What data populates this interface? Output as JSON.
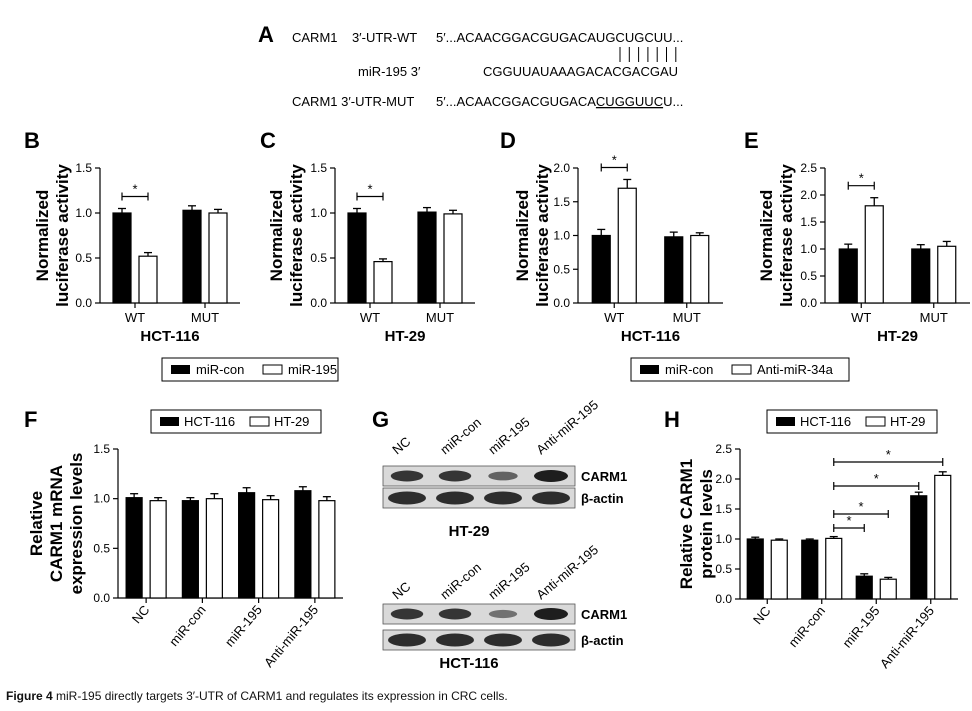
{
  "sequence_panel": {
    "letter": "A",
    "wt_label": "CARM1    3′-UTR-WT",
    "wt_seq_pre": "5′...ACAACGGACGUGACAU",
    "wt_seq_mid": "GCUGCU",
    "wt_seq_post": "U...",
    "mir_label": "miR-195 3′",
    "mir_seq": "CGGUUAUAAAGACACGACGAU",
    "mut_label": "CARM1 3′-UTR-MUT",
    "mut_seq_pre": "5′...ACAACGGACGUGACA",
    "mut_seq_mid": "CUGGUUC",
    "mut_seq_post": "U...",
    "pairing_marks": 7
  },
  "legends": {
    "bc": {
      "items": [
        "miR-con",
        "miR-195"
      ]
    },
    "de": {
      "items": [
        "miR-con",
        "Anti-miR-34a"
      ]
    },
    "f": {
      "items": [
        "HCT-116",
        "HT-29"
      ]
    },
    "h": {
      "items": [
        "HCT-116",
        "HT-29"
      ]
    }
  },
  "blot_panel": {
    "letter": "G",
    "lanes": [
      "NC",
      "miR-con",
      "miR-195",
      "Anti-miR-195"
    ],
    "blots": [
      {
        "title": "HT-29",
        "bands": [
          "CARM1",
          "β-actin"
        ],
        "carm1_intensity": [
          0.85,
          0.85,
          0.55,
          1.0
        ],
        "actin_intensity": [
          0.9,
          0.9,
          0.9,
          0.9
        ]
      },
      {
        "title": "HCT-116",
        "bands": [
          "CARM1",
          "β-actin"
        ],
        "carm1_intensity": [
          0.85,
          0.85,
          0.45,
          1.0
        ],
        "actin_intensity": [
          0.9,
          0.9,
          0.9,
          0.9
        ]
      }
    ]
  },
  "chart_data": [
    {
      "panel": "B",
      "type": "bar",
      "title": "HCT-116",
      "ylabel": "Normalized luciferase activity",
      "categories": [
        "WT",
        "MUT"
      ],
      "ylim": [
        0,
        1.5
      ],
      "yticks": [
        "0.0",
        "0.5",
        "1.0",
        "1.5"
      ],
      "series": [
        {
          "name": "miR-con",
          "values": [
            1.0,
            1.03
          ],
          "errors": [
            0.05,
            0.05
          ],
          "fill": "#000000"
        },
        {
          "name": "miR-195",
          "values": [
            0.52,
            1.0
          ],
          "errors": [
            0.04,
            0.04
          ],
          "fill": "#ffffff"
        }
      ],
      "annotations": [
        {
          "text": "*",
          "category": 0
        }
      ]
    },
    {
      "panel": "C",
      "type": "bar",
      "title": "HT-29",
      "ylabel": "Normalized luciferase activity",
      "categories": [
        "WT",
        "MUT"
      ],
      "ylim": [
        0,
        1.5
      ],
      "yticks": [
        "0.0",
        "0.5",
        "1.0",
        "1.5"
      ],
      "series": [
        {
          "name": "miR-con",
          "values": [
            1.0,
            1.01
          ],
          "errors": [
            0.05,
            0.05
          ],
          "fill": "#000000"
        },
        {
          "name": "miR-195",
          "values": [
            0.46,
            0.99
          ],
          "errors": [
            0.03,
            0.04
          ],
          "fill": "#ffffff"
        }
      ],
      "annotations": [
        {
          "text": "*",
          "category": 0
        }
      ]
    },
    {
      "panel": "D",
      "type": "bar",
      "title": "HCT-116",
      "ylabel": "Normalized luciferase activity",
      "categories": [
        "WT",
        "MUT"
      ],
      "ylim": [
        0,
        2.0
      ],
      "yticks": [
        "0.0",
        "0.5",
        "1.0",
        "1.5",
        "2.0"
      ],
      "series": [
        {
          "name": "miR-con",
          "values": [
            1.0,
            0.98
          ],
          "errors": [
            0.09,
            0.07
          ],
          "fill": "#000000"
        },
        {
          "name": "Anti-miR-34a",
          "values": [
            1.7,
            1.0
          ],
          "errors": [
            0.13,
            0.04
          ],
          "fill": "#ffffff"
        }
      ],
      "annotations": [
        {
          "text": "*",
          "category": 0
        }
      ]
    },
    {
      "panel": "E",
      "type": "bar",
      "title": "HT-29",
      "ylabel": "Normalized luciferase activity",
      "categories": [
        "WT",
        "MUT"
      ],
      "ylim": [
        0,
        2.5
      ],
      "yticks": [
        "0.0",
        "0.5",
        "1.0",
        "1.5",
        "2.0",
        "2.5"
      ],
      "series": [
        {
          "name": "miR-con",
          "values": [
            1.0,
            1.0
          ],
          "errors": [
            0.09,
            0.08
          ],
          "fill": "#000000"
        },
        {
          "name": "Anti-miR-34a",
          "values": [
            1.8,
            1.05
          ],
          "errors": [
            0.15,
            0.09
          ],
          "fill": "#ffffff"
        }
      ],
      "annotations": [
        {
          "text": "*",
          "category": 0
        }
      ]
    },
    {
      "panel": "F",
      "type": "bar",
      "title": "",
      "ylabel": "Relative CARM1 mRNA expression levels",
      "categories": [
        "NC",
        "miR-con",
        "miR-195",
        "Anti-miR-195"
      ],
      "ylim": [
        0,
        1.5
      ],
      "yticks": [
        "0.0",
        "0.5",
        "1.0",
        "1.5"
      ],
      "series": [
        {
          "name": "HCT-116",
          "values": [
            1.01,
            0.98,
            1.06,
            1.08
          ],
          "errors": [
            0.04,
            0.03,
            0.05,
            0.04
          ],
          "fill": "#000000"
        },
        {
          "name": "HT-29",
          "values": [
            0.98,
            1.0,
            0.99,
            0.98
          ],
          "errors": [
            0.03,
            0.05,
            0.04,
            0.04
          ],
          "fill": "#ffffff"
        }
      ],
      "annotations": []
    },
    {
      "panel": "H",
      "type": "bar",
      "title": "",
      "ylabel": "Relative CARM1 protein levels",
      "categories": [
        "NC",
        "miR-con",
        "miR-195",
        "Anti-miR-195"
      ],
      "ylim": [
        0,
        2.5
      ],
      "yticks": [
        "0.0",
        "0.5",
        "1.0",
        "1.5",
        "2.0",
        "2.5"
      ],
      "series": [
        {
          "name": "HCT-116",
          "values": [
            1.0,
            0.98,
            0.38,
            1.72
          ],
          "errors": [
            0.03,
            0.02,
            0.04,
            0.06
          ],
          "fill": "#000000"
        },
        {
          "name": "HT-29",
          "values": [
            0.98,
            1.01,
            0.33,
            2.06
          ],
          "errors": [
            0.02,
            0.03,
            0.03,
            0.06
          ],
          "fill": "#ffffff"
        }
      ],
      "annotations": [
        {
          "text": "*",
          "from": [
            1,
            1
          ],
          "to": [
            2,
            0
          ]
        },
        {
          "text": "*",
          "from": [
            1,
            1
          ],
          "to": [
            2,
            1
          ]
        },
        {
          "text": "*",
          "from": [
            1,
            1
          ],
          "to": [
            3,
            0
          ]
        },
        {
          "text": "*",
          "from": [
            1,
            1
          ],
          "to": [
            3,
            1
          ]
        }
      ]
    }
  ],
  "caption": {
    "label": "Figure 4",
    "text": " miR-195 directly targets 3′-UTR of CARM1 and regulates its expression in CRC cells."
  }
}
